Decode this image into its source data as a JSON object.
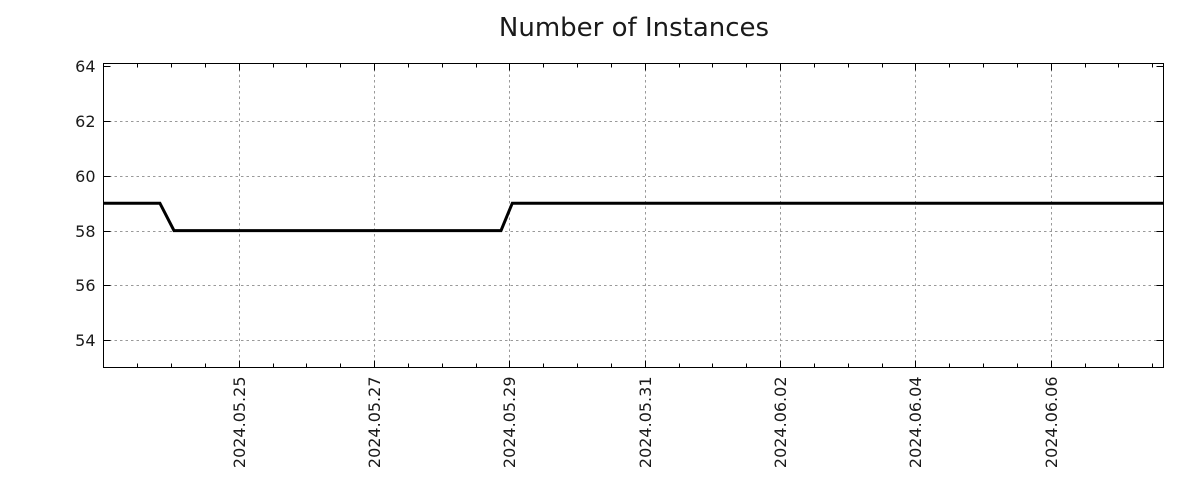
{
  "colors": {
    "background": "#ffffff",
    "line": "#000000",
    "grid": "#999999",
    "axis": "#000000",
    "text": "#1a1a1a"
  },
  "chart_data": {
    "type": "line",
    "title": "Number of Instances",
    "xlabel": "",
    "ylabel": "",
    "legend": "none",
    "grid": true,
    "xlim": [
      "2024-05-23 00:00",
      "2024-06-07 16:00"
    ],
    "ylim": [
      53.0,
      64.1
    ],
    "y_ticks": [
      54,
      56,
      58,
      60,
      62,
      64
    ],
    "x_ticks": [
      {
        "date": "2024-05-25 00:00",
        "label": "2024.05.25"
      },
      {
        "date": "2024-05-27 00:00",
        "label": "2024.05.27"
      },
      {
        "date": "2024-05-29 00:00",
        "label": "2024.05.29"
      },
      {
        "date": "2024-05-31 00:00",
        "label": "2024.05.31"
      },
      {
        "date": "2024-06-02 00:00",
        "label": "2024.06.02"
      },
      {
        "date": "2024-06-04 00:00",
        "label": "2024.06.04"
      },
      {
        "date": "2024-06-06 00:00",
        "label": "2024.06.06"
      }
    ],
    "minor_x_tick_interval_hours": 12,
    "series": [
      {
        "name": "Number of Instances",
        "color": "#000000",
        "width": 3,
        "points": [
          [
            "2024-05-23 00:00",
            59
          ],
          [
            "2024-05-23 20:00",
            59
          ],
          [
            "2024-05-24 01:00",
            58
          ],
          [
            "2024-05-28 21:00",
            58
          ],
          [
            "2024-05-29 01:00",
            59
          ],
          [
            "2024-06-07 16:00",
            59
          ]
        ]
      }
    ]
  }
}
